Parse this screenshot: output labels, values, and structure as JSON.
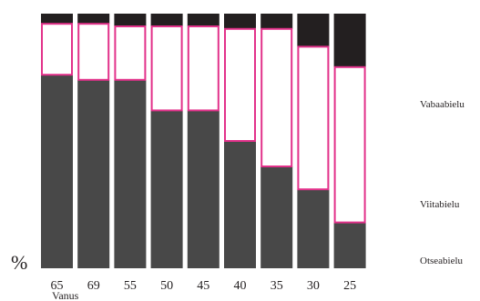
{
  "chart_data": {
    "type": "bar",
    "stacked": true,
    "normalized": true,
    "yunit": "%",
    "xlabel": "Vanus",
    "ylabel": "%",
    "ylim": [
      0,
      100
    ],
    "categories": [
      "65",
      "69",
      "55",
      "50",
      "45",
      "40",
      "35",
      "30",
      "25"
    ],
    "series": [
      {
        "name": "Otseabielu",
        "values": [
          76,
          74,
          74,
          62,
          62,
          50,
          40,
          31,
          18
        ],
        "color": "#484848",
        "pink_outline": false
      },
      {
        "name": "Viitabielu",
        "values": [
          20,
          22,
          21,
          33,
          33,
          44,
          54,
          56,
          61
        ],
        "color": "#ffffff",
        "pink_outline": true
      },
      {
        "name": "Vabaabielu",
        "values": [
          4,
          4,
          5,
          5,
          5,
          6,
          6,
          13,
          21
        ],
        "color": "#231f20",
        "pink_outline": false
      }
    ],
    "outline_color": "#e2318a",
    "grid": false,
    "legend": "right"
  }
}
